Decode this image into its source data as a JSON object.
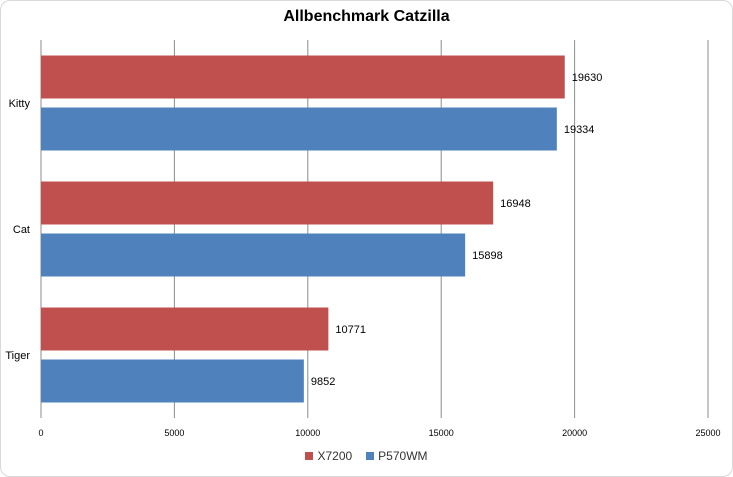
{
  "chart_data": {
    "type": "bar",
    "orientation": "horizontal",
    "title": "Allbenchmark Catzilla",
    "categories": [
      "Kitty",
      "Cat",
      "Tiger"
    ],
    "series": [
      {
        "name": "X7200",
        "color": "#c0504d",
        "values": [
          19630,
          16948,
          10771
        ]
      },
      {
        "name": "P570WM",
        "color": "#4f81bd",
        "values": [
          19334,
          15898,
          9852
        ]
      }
    ],
    "xlim": [
      0,
      25000
    ],
    "xticks": [
      0,
      5000,
      10000,
      15000,
      20000,
      25000
    ],
    "xlabel": "",
    "ylabel": "",
    "grid": "vertical",
    "legend_position": "bottom",
    "data_labels": true
  }
}
